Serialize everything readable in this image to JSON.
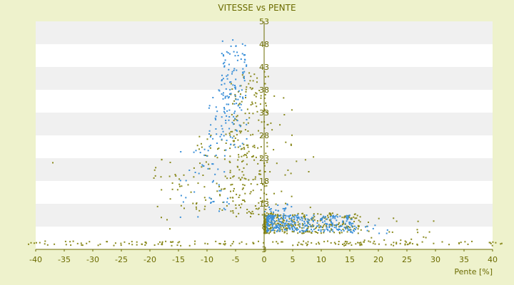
{
  "chart_data": {
    "type": "scatter",
    "title": "VITESSE vs PENTE",
    "xlabel": "Pente [%]",
    "ylabel": "",
    "xlim": [
      -40,
      40
    ],
    "ylim": [
      3,
      53
    ],
    "x_ticks": [
      -40,
      -35,
      -30,
      -25,
      -20,
      -15,
      -10,
      -5,
      0,
      5,
      10,
      15,
      20,
      25,
      30,
      35,
      40
    ],
    "y_ticks": [
      3,
      8,
      13,
      18,
      23,
      28,
      33,
      38,
      43,
      48,
      53
    ],
    "grid": "horizontal bands",
    "legend": "none",
    "colors": {
      "background": "#eef2cc",
      "plot_band_light": "#ffffff",
      "plot_band_dark": "#f0f0f0",
      "text": "#6b6b00",
      "axis": "#6b6b00",
      "series_olive": "#8a8a1e",
      "series_blue": "#3a8fd8"
    },
    "series": [
      {
        "color": "#8a8a1e",
        "clusters": [
          {
            "x": [
              -42,
              42
            ],
            "y": [
              3.8,
              4.8
            ],
            "n": 170,
            "dist": "uniform"
          },
          {
            "x": [
              -6,
              0.8
            ],
            "y": [
              10,
              42
            ],
            "n": 210,
            "dist": "uniform"
          },
          {
            "x": [
              -12,
              -3
            ],
            "y": [
              11,
              30
            ],
            "n": 80,
            "dist": "uniform"
          },
          {
            "x": [
              -19.5,
              -12
            ],
            "y": [
              12,
              23
            ],
            "n": 28,
            "dist": "uniform"
          },
          {
            "x": [
              0,
              17
            ],
            "y": [
              6.5,
              11
            ],
            "n": 330,
            "dist": "weighted"
          },
          {
            "x": [
              16,
              31
            ],
            "y": [
              5,
              10
            ],
            "n": 22,
            "dist": "uniform"
          },
          {
            "x": [
              0.5,
              5
            ],
            "y": [
              12,
              38
            ],
            "n": 22,
            "dist": "uniform"
          },
          {
            "x": [
              5,
              10
            ],
            "y": [
              12,
              24
            ],
            "n": 5,
            "dist": "uniform"
          }
        ],
        "points": [
          [
            -37,
            22
          ],
          [
            -18,
            10
          ],
          [
            -17,
            9.5
          ],
          [
            -16.5,
            7.5
          ],
          [
            -14,
            12
          ]
        ]
      },
      {
        "color": "#3a8fd8",
        "clusters": [
          {
            "x": [
              -7.5,
              -3
            ],
            "y": [
              25,
              49
            ],
            "n": 130,
            "dist": "uniform"
          },
          {
            "x": [
              -10,
              -6
            ],
            "y": [
              11,
              38
            ],
            "n": 55,
            "dist": "uniform"
          },
          {
            "x": [
              -15,
              -9
            ],
            "y": [
              10,
              25
            ],
            "n": 22,
            "dist": "uniform"
          },
          {
            "x": [
              0.5,
              16
            ],
            "y": [
              6.8,
              10.5
            ],
            "n": 320,
            "dist": "weighted"
          },
          {
            "x": [
              0,
              6
            ],
            "y": [
              10,
              13
            ],
            "n": 25,
            "dist": "uniform"
          },
          {
            "x": [
              15,
              22
            ],
            "y": [
              6.5,
              9
            ],
            "n": 10,
            "dist": "uniform"
          }
        ],
        "points": []
      }
    ]
  }
}
